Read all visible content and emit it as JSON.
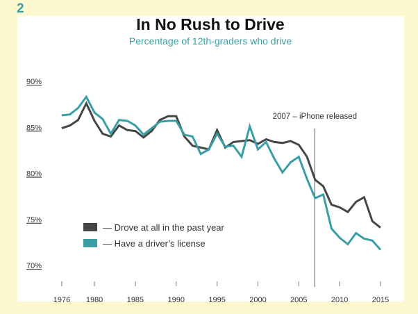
{
  "figure_number": "2",
  "chart_data": {
    "type": "line",
    "title": "In No Rush to Drive",
    "subtitle": "Percentage of 12th-graders who drive",
    "xlabel": "",
    "ylabel": "",
    "xlim": [
      1976,
      2015
    ],
    "ylim": [
      70,
      90
    ],
    "x_ticks": [
      1976,
      1980,
      1985,
      1990,
      1995,
      2000,
      2005,
      2010,
      2015
    ],
    "y_ticks": [
      90,
      85,
      80,
      75,
      70
    ],
    "y_tick_labels": [
      "90%",
      "85%",
      "80%",
      "75%",
      "70%"
    ],
    "grid": false,
    "legend_position": "bottom-left",
    "annotation": {
      "x": 2007,
      "label": "2007 – iPhone released"
    },
    "x": [
      1976,
      1977,
      1978,
      1979,
      1980,
      1981,
      1982,
      1983,
      1984,
      1985,
      1986,
      1987,
      1988,
      1989,
      1990,
      1991,
      1992,
      1993,
      1994,
      1995,
      1996,
      1997,
      1998,
      1999,
      2000,
      2001,
      2002,
      2003,
      2004,
      2005,
      2006,
      2007,
      2008,
      2009,
      2010,
      2011,
      2012,
      2013,
      2014,
      2015
    ],
    "series": [
      {
        "name": "— Drove at all in the past year",
        "color": "#464646",
        "values": [
          84.9,
          85.2,
          85.8,
          87.6,
          85.7,
          84.3,
          84.0,
          85.2,
          84.7,
          84.6,
          83.9,
          84.6,
          85.8,
          86.2,
          86.2,
          84.0,
          83.0,
          82.8,
          82.6,
          84.7,
          82.8,
          83.4,
          83.5,
          83.6,
          83.2,
          83.7,
          83.4,
          83.3,
          83.5,
          83.1,
          81.8,
          79.3,
          78.6,
          76.6,
          76.3,
          75.8,
          76.9,
          77.4,
          74.8,
          74.1
        ]
      },
      {
        "name": "— Have a driver’s license",
        "color": "#3a9ea5",
        "values": [
          86.3,
          86.4,
          87.1,
          88.3,
          86.6,
          85.9,
          84.3,
          85.8,
          85.7,
          85.2,
          84.2,
          84.9,
          85.6,
          85.7,
          85.7,
          84.2,
          84.0,
          82.1,
          82.6,
          84.3,
          82.9,
          83.0,
          81.8,
          85.1,
          82.6,
          83.4,
          81.6,
          80.1,
          81.2,
          81.8,
          79.4,
          77.3,
          77.7,
          74.0,
          73.0,
          72.3,
          73.5,
          72.9,
          72.7,
          71.7
        ]
      }
    ]
  }
}
